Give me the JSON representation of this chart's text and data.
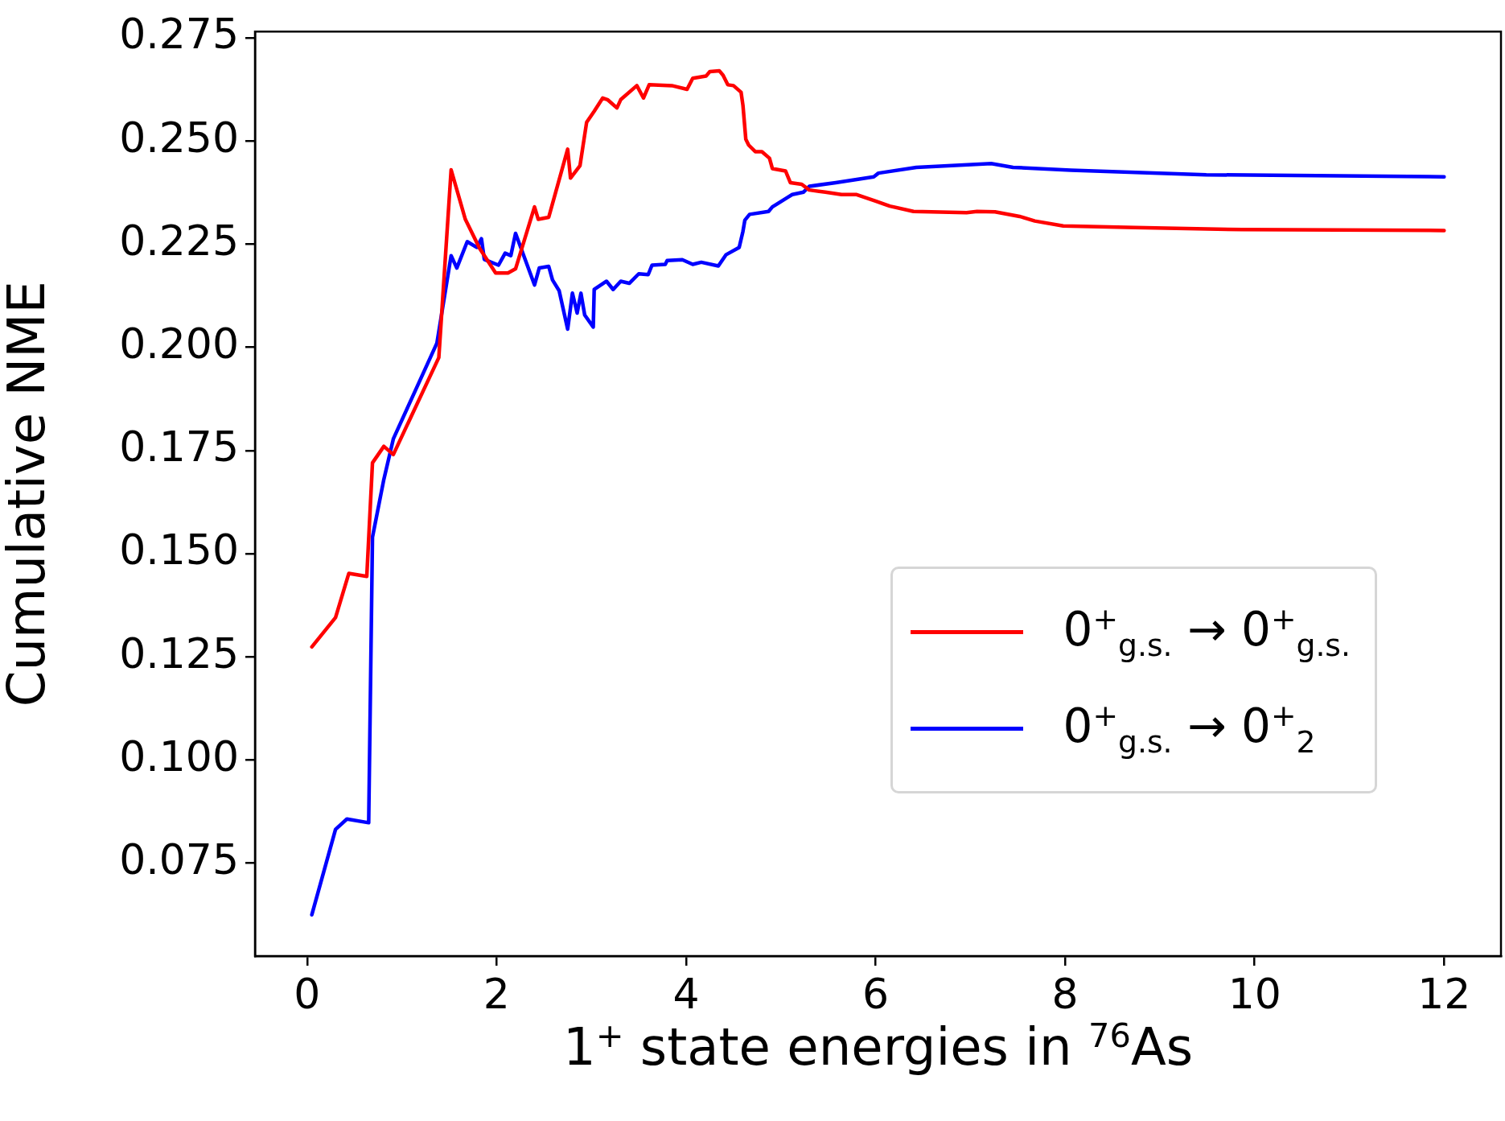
{
  "chart_data": {
    "type": "line",
    "xlabel": "1$^{+}$ state energies in $^{76}$As",
    "ylabel": "Cumulative NME",
    "xlim": [
      -0.55,
      12.6
    ],
    "ylim": [
      0.0525,
      0.2765
    ],
    "xticks": [
      0,
      2,
      4,
      6,
      8,
      10,
      12
    ],
    "yticks": [
      0.075,
      {
        "value": 0.1,
        "label": "0.100"
      },
      0.125,
      {
        "value": 0.15,
        "label": "0.150"
      },
      0.175,
      {
        "value": 0.2,
        "label": "0.200"
      },
      0.225,
      {
        "value": 0.25,
        "label": "0.250"
      },
      0.275
    ],
    "grid": false,
    "legend": "right",
    "marker": "none",
    "line_style": "solid",
    "series": [
      {
        "name": "0$^{+}$$_{g.s.}$ → 0$^{+}$$_{g.s.}$",
        "color": "#ff0000",
        "x": [
          0.05,
          0.3,
          0.44,
          0.63,
          0.69,
          0.81,
          0.91,
          1.39,
          1.52,
          1.67,
          1.82,
          1.99,
          2.12,
          2.2,
          2.4,
          2.44,
          2.55,
          2.75,
          2.78,
          2.88,
          2.95,
          3.03,
          3.12,
          3.17,
          3.27,
          3.31,
          3.48,
          3.55,
          3.61,
          3.85,
          4.01,
          4.07,
          4.21,
          4.25,
          4.35,
          4.39,
          4.44,
          4.5,
          4.58,
          4.6,
          4.63,
          4.66,
          4.73,
          4.8,
          4.88,
          4.91,
          5.05,
          5.1,
          5.22,
          5.3,
          5.47,
          5.64,
          5.8,
          6.0,
          6.15,
          6.4,
          6.96,
          7.07,
          7.26,
          7.52,
          7.68,
          7.98,
          8.74,
          9.87,
          12.0
        ],
        "values": [
          0.1274,
          0.1345,
          0.1452,
          0.1445,
          0.172,
          0.176,
          0.174,
          0.1975,
          0.243,
          0.231,
          0.224,
          0.218,
          0.218,
          0.219,
          0.234,
          0.231,
          0.2315,
          0.248,
          0.241,
          0.244,
          0.2545,
          0.2572,
          0.2604,
          0.26,
          0.258,
          0.26,
          0.2634,
          0.2604,
          0.2636,
          0.2634,
          0.2625,
          0.2652,
          0.2657,
          0.2668,
          0.267,
          0.2659,
          0.2636,
          0.2634,
          0.2618,
          0.2586,
          0.2504,
          0.249,
          0.2474,
          0.2474,
          0.2458,
          0.2433,
          0.2427,
          0.2399,
          0.2395,
          0.2381,
          0.2376,
          0.237,
          0.237,
          0.2354,
          0.2342,
          0.2329,
          0.2326,
          0.2329,
          0.2328,
          0.2317,
          0.2306,
          0.2294,
          0.229,
          0.2285,
          0.2283
        ]
      },
      {
        "name": "0$^{+}$$_{g.s.}$ → 0$^{+}$$_{2}$",
        "color": "#0000ff",
        "x": [
          0.05,
          0.3,
          0.42,
          0.65,
          0.69,
          0.81,
          0.91,
          1.37,
          1.52,
          1.58,
          1.69,
          1.79,
          1.84,
          1.87,
          2.02,
          2.09,
          2.15,
          2.2,
          2.4,
          2.45,
          2.55,
          2.59,
          2.66,
          2.75,
          2.8,
          2.85,
          2.89,
          2.93,
          3.02,
          3.03,
          3.16,
          3.23,
          3.31,
          3.4,
          3.5,
          3.6,
          3.64,
          3.78,
          3.8,
          3.96,
          4.07,
          4.16,
          4.34,
          4.42,
          4.56,
          4.6,
          4.62,
          4.67,
          4.87,
          4.91,
          5.07,
          5.12,
          5.24,
          5.3,
          5.58,
          5.98,
          6.03,
          6.43,
          7.22,
          7.45,
          8.06,
          9.49,
          12.0
        ],
        "values": [
          0.0625,
          0.0832,
          0.0857,
          0.0848,
          0.154,
          0.168,
          0.1778,
          0.201,
          0.2222,
          0.2192,
          0.2256,
          0.2242,
          0.2263,
          0.2213,
          0.2199,
          0.2228,
          0.2222,
          0.2276,
          0.2151,
          0.2192,
          0.2196,
          0.2163,
          0.2137,
          0.2044,
          0.2131,
          0.2083,
          0.2131,
          0.2078,
          0.2049,
          0.214,
          0.216,
          0.214,
          0.216,
          0.2155,
          0.2178,
          0.2176,
          0.2199,
          0.2201,
          0.221,
          0.2212,
          0.2201,
          0.2206,
          0.2197,
          0.2224,
          0.2242,
          0.2281,
          0.2308,
          0.2322,
          0.2329,
          0.234,
          0.2363,
          0.237,
          0.2376,
          0.239,
          0.2399,
          0.2413,
          0.2422,
          0.2436,
          0.2445,
          0.2436,
          0.2429,
          0.2418,
          0.2413
        ]
      }
    ]
  }
}
